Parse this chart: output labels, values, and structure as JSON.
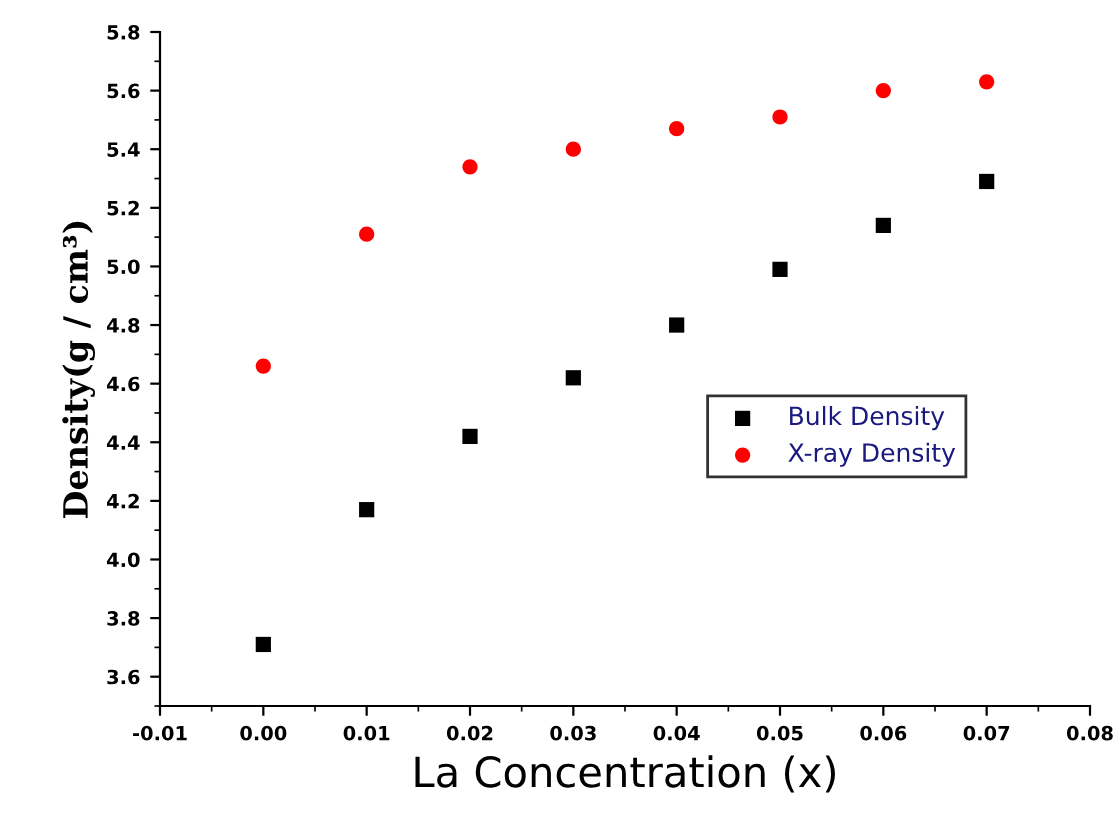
{
  "chart_data": {
    "type": "scatter",
    "xlabel": "La Concentration (x)",
    "ylabel": "Density(g / cm³)",
    "x": [
      0.0,
      0.01,
      0.02,
      0.03,
      0.04,
      0.05,
      0.06,
      0.07
    ],
    "series": [
      {
        "name": "Bulk Density",
        "color": "#000000",
        "marker": "square",
        "values": [
          3.71,
          4.17,
          4.42,
          4.62,
          4.8,
          4.99,
          5.14,
          5.29
        ]
      },
      {
        "name": "X-ray Density",
        "color": "#ff0000",
        "marker": "circle",
        "values": [
          4.66,
          5.11,
          5.34,
          5.4,
          5.47,
          5.51,
          5.6,
          5.63
        ]
      }
    ],
    "xlim": [
      -0.01,
      0.08
    ],
    "ylim": [
      3.5,
      5.8
    ],
    "xticks": [
      {
        "value": -0.01,
        "label": "-0.01"
      },
      {
        "value": 0.0,
        "label": "0.00"
      },
      {
        "value": 0.01,
        "label": "0.01"
      },
      {
        "value": 0.02,
        "label": "0.02"
      },
      {
        "value": 0.03,
        "label": "0.03"
      },
      {
        "value": 0.04,
        "label": "0.04"
      },
      {
        "value": 0.05,
        "label": "0.05"
      },
      {
        "value": 0.06,
        "label": "0.06"
      },
      {
        "value": 0.07,
        "label": "0.07"
      },
      {
        "value": 0.08,
        "label": "0.08"
      }
    ],
    "yticks": [
      {
        "value": 3.6,
        "label": "3.6"
      },
      {
        "value": 3.8,
        "label": "3.8"
      },
      {
        "value": 4.0,
        "label": "4.0"
      },
      {
        "value": 4.2,
        "label": "4.2"
      },
      {
        "value": 4.4,
        "label": "4.4"
      },
      {
        "value": 4.6,
        "label": "4.6"
      },
      {
        "value": 4.8,
        "label": "4.8"
      },
      {
        "value": 5.0,
        "label": "5.0"
      },
      {
        "value": 5.2,
        "label": "5.2"
      },
      {
        "value": 5.4,
        "label": "5.4"
      },
      {
        "value": 5.6,
        "label": "5.6"
      },
      {
        "value": 5.8,
        "label": "5.8"
      }
    ],
    "grid": false,
    "legend": "right"
  }
}
